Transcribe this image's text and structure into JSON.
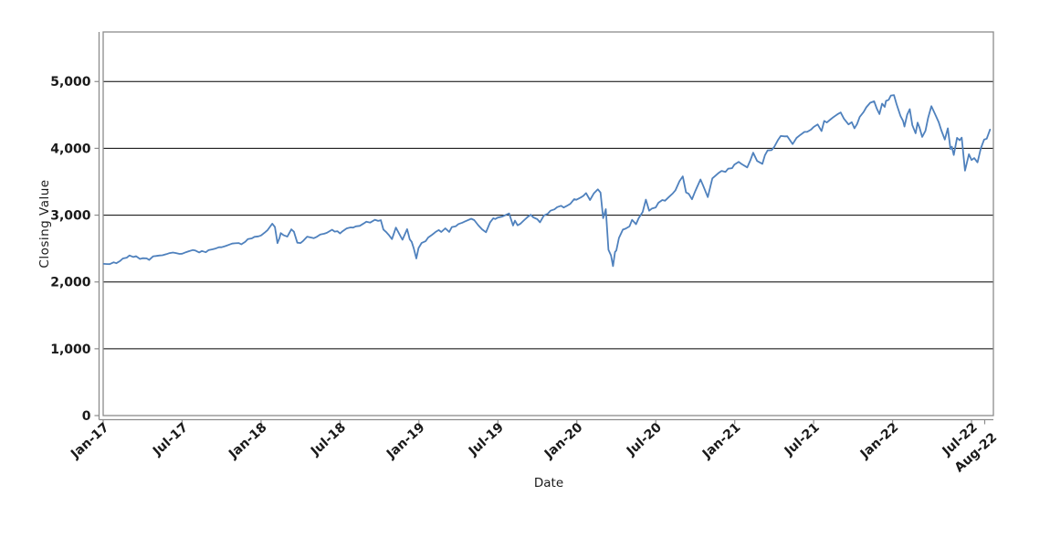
{
  "figure": {
    "background": "#ffffff",
    "frame_color": "#8c8c8c",
    "grid_color": "#000000",
    "text_color": "#1a1a1a"
  },
  "chart_data": {
    "type": "line",
    "title": "",
    "xlabel": "Date",
    "ylabel": "Closing Value",
    "legend": "none",
    "grid": "horizontal",
    "line_color": "#4f81bd",
    "xlim": [
      0,
      67.66
    ],
    "ylim": [
      0,
      5742
    ],
    "x_unit": "months-since-Jan-2017",
    "x_ticks": [
      {
        "label": "Jan-17",
        "t": 0
      },
      {
        "label": "Jul-17",
        "t": 6
      },
      {
        "label": "Jan-18",
        "t": 12
      },
      {
        "label": "Jul-18",
        "t": 18
      },
      {
        "label": "Jan-19",
        "t": 24
      },
      {
        "label": "Jul-19",
        "t": 30
      },
      {
        "label": "Jan-20",
        "t": 36
      },
      {
        "label": "Jul-20",
        "t": 42
      },
      {
        "label": "Jan-21",
        "t": 48
      },
      {
        "label": "Jul-21",
        "t": 54
      },
      {
        "label": "Jan-22",
        "t": 60
      },
      {
        "label": "Jul-22",
        "t": 66
      },
      {
        "label": "Aug-22",
        "t": 67,
        "dx": 7,
        "dy": 11
      }
    ],
    "y_ticks": [
      {
        "label": "0",
        "v": 0
      },
      {
        "label": "1,000",
        "v": 1000
      },
      {
        "label": "2,000",
        "v": 2000
      },
      {
        "label": "3,000",
        "v": 3000
      },
      {
        "label": "4,000",
        "v": 4000
      },
      {
        "label": "5,000",
        "v": 5000
      }
    ],
    "series": [
      {
        "name": "Closing Value",
        "points": [
          [
            0.05,
            2271
          ],
          [
            0.3,
            2268
          ],
          [
            0.5,
            2267
          ],
          [
            0.8,
            2294
          ],
          [
            1.0,
            2280
          ],
          [
            1.3,
            2316
          ],
          [
            1.5,
            2351
          ],
          [
            1.8,
            2364
          ],
          [
            2.0,
            2396
          ],
          [
            2.3,
            2373
          ],
          [
            2.5,
            2385
          ],
          [
            2.8,
            2344
          ],
          [
            3.0,
            2356
          ],
          [
            3.3,
            2353
          ],
          [
            3.5,
            2329
          ],
          [
            3.8,
            2384
          ],
          [
            4.0,
            2388
          ],
          [
            4.3,
            2397
          ],
          [
            4.5,
            2400
          ],
          [
            4.8,
            2416
          ],
          [
            5.0,
            2430
          ],
          [
            5.3,
            2440
          ],
          [
            5.5,
            2433
          ],
          [
            5.8,
            2420
          ],
          [
            6.0,
            2423
          ],
          [
            6.3,
            2446
          ],
          [
            6.5,
            2460
          ],
          [
            6.8,
            2477
          ],
          [
            7.0,
            2470
          ],
          [
            7.3,
            2442
          ],
          [
            7.5,
            2464
          ],
          [
            7.8,
            2444
          ],
          [
            8.0,
            2476
          ],
          [
            8.3,
            2488
          ],
          [
            8.5,
            2498
          ],
          [
            8.8,
            2519
          ],
          [
            9.0,
            2520
          ],
          [
            9.3,
            2537
          ],
          [
            9.5,
            2553
          ],
          [
            9.8,
            2575
          ],
          [
            10.0,
            2579
          ],
          [
            10.3,
            2582
          ],
          [
            10.5,
            2564
          ],
          [
            10.8,
            2602
          ],
          [
            11.0,
            2642
          ],
          [
            11.3,
            2652
          ],
          [
            11.5,
            2675
          ],
          [
            11.8,
            2683
          ],
          [
            12.0,
            2696
          ],
          [
            12.3,
            2743
          ],
          [
            12.5,
            2776
          ],
          [
            12.85,
            2873
          ],
          [
            13.05,
            2822
          ],
          [
            13.25,
            2581
          ],
          [
            13.4,
            2656
          ],
          [
            13.5,
            2732
          ],
          [
            13.7,
            2701
          ],
          [
            14.0,
            2678
          ],
          [
            14.3,
            2787
          ],
          [
            14.5,
            2752
          ],
          [
            14.75,
            2588
          ],
          [
            15.0,
            2582
          ],
          [
            15.2,
            2614
          ],
          [
            15.5,
            2678
          ],
          [
            15.7,
            2670
          ],
          [
            16.0,
            2655
          ],
          [
            16.2,
            2672
          ],
          [
            16.5,
            2711
          ],
          [
            16.8,
            2722
          ],
          [
            17.0,
            2735
          ],
          [
            17.4,
            2782
          ],
          [
            17.6,
            2754
          ],
          [
            17.8,
            2760
          ],
          [
            18.0,
            2726
          ],
          [
            18.2,
            2760
          ],
          [
            18.5,
            2801
          ],
          [
            18.8,
            2816
          ],
          [
            19.0,
            2813
          ],
          [
            19.2,
            2833
          ],
          [
            19.5,
            2840
          ],
          [
            19.8,
            2875
          ],
          [
            20.0,
            2902
          ],
          [
            20.3,
            2889
          ],
          [
            20.65,
            2931
          ],
          [
            20.9,
            2914
          ],
          [
            21.1,
            2925
          ],
          [
            21.3,
            2785
          ],
          [
            21.5,
            2750
          ],
          [
            21.7,
            2705
          ],
          [
            21.95,
            2641
          ],
          [
            22.25,
            2814
          ],
          [
            22.5,
            2722
          ],
          [
            22.75,
            2632
          ],
          [
            23.1,
            2790
          ],
          [
            23.3,
            2637
          ],
          [
            23.45,
            2600
          ],
          [
            23.6,
            2506
          ],
          [
            23.8,
            2351
          ],
          [
            23.97,
            2507
          ],
          [
            24.2,
            2582
          ],
          [
            24.5,
            2610
          ],
          [
            24.7,
            2665
          ],
          [
            25.0,
            2707
          ],
          [
            25.3,
            2754
          ],
          [
            25.5,
            2776
          ],
          [
            25.7,
            2748
          ],
          [
            26.0,
            2803
          ],
          [
            26.3,
            2749
          ],
          [
            26.5,
            2822
          ],
          [
            26.8,
            2834
          ],
          [
            27.0,
            2867
          ],
          [
            27.3,
            2888
          ],
          [
            27.5,
            2906
          ],
          [
            27.97,
            2946
          ],
          [
            28.2,
            2926
          ],
          [
            28.5,
            2851
          ],
          [
            28.8,
            2788
          ],
          [
            29.1,
            2744
          ],
          [
            29.4,
            2890
          ],
          [
            29.65,
            2954
          ],
          [
            29.8,
            2942
          ],
          [
            30.0,
            2964
          ],
          [
            30.3,
            2976
          ],
          [
            30.85,
            3026
          ],
          [
            31.15,
            2845
          ],
          [
            31.3,
            2918
          ],
          [
            31.5,
            2848
          ],
          [
            31.7,
            2869
          ],
          [
            32.0,
            2926
          ],
          [
            32.3,
            2979
          ],
          [
            32.5,
            3007
          ],
          [
            32.7,
            2966
          ],
          [
            33.0,
            2940
          ],
          [
            33.2,
            2893
          ],
          [
            33.5,
            2996
          ],
          [
            33.8,
            3023
          ],
          [
            34.0,
            3067
          ],
          [
            34.3,
            3087
          ],
          [
            34.5,
            3120
          ],
          [
            34.8,
            3141
          ],
          [
            35.0,
            3114
          ],
          [
            35.3,
            3146
          ],
          [
            35.5,
            3169
          ],
          [
            35.8,
            3240
          ],
          [
            35.97,
            3231
          ],
          [
            36.3,
            3265
          ],
          [
            36.5,
            3289
          ],
          [
            36.7,
            3330
          ],
          [
            37.0,
            3226
          ],
          [
            37.3,
            3328
          ],
          [
            37.6,
            3386
          ],
          [
            37.8,
            3338
          ],
          [
            38.0,
            2954
          ],
          [
            38.2,
            3090
          ],
          [
            38.4,
            2481
          ],
          [
            38.6,
            2398
          ],
          [
            38.75,
            2237
          ],
          [
            38.9,
            2448
          ],
          [
            39.0,
            2471
          ],
          [
            39.2,
            2659
          ],
          [
            39.5,
            2783
          ],
          [
            39.7,
            2797
          ],
          [
            40.0,
            2831
          ],
          [
            40.2,
            2930
          ],
          [
            40.5,
            2864
          ],
          [
            40.7,
            2955
          ],
          [
            41.0,
            3044
          ],
          [
            41.25,
            3232
          ],
          [
            41.5,
            3066
          ],
          [
            41.7,
            3098
          ],
          [
            42.0,
            3116
          ],
          [
            42.2,
            3185
          ],
          [
            42.5,
            3226
          ],
          [
            42.7,
            3216
          ],
          [
            43.0,
            3271
          ],
          [
            43.3,
            3327
          ],
          [
            43.5,
            3373
          ],
          [
            43.8,
            3508
          ],
          [
            44.05,
            3581
          ],
          [
            44.3,
            3340
          ],
          [
            44.5,
            3319
          ],
          [
            44.75,
            3237
          ],
          [
            45.0,
            3361
          ],
          [
            45.4,
            3534
          ],
          [
            45.6,
            3443
          ],
          [
            45.95,
            3270
          ],
          [
            46.3,
            3550
          ],
          [
            46.5,
            3585
          ],
          [
            46.8,
            3635
          ],
          [
            47.0,
            3662
          ],
          [
            47.3,
            3647
          ],
          [
            47.5,
            3695
          ],
          [
            47.8,
            3703
          ],
          [
            47.97,
            3756
          ],
          [
            48.3,
            3798
          ],
          [
            48.5,
            3768
          ],
          [
            48.95,
            3714
          ],
          [
            49.2,
            3826
          ],
          [
            49.4,
            3935
          ],
          [
            49.7,
            3811
          ],
          [
            50.1,
            3768
          ],
          [
            50.3,
            3898
          ],
          [
            50.5,
            3969
          ],
          [
            50.8,
            3973
          ],
          [
            51.0,
            4020
          ],
          [
            51.3,
            4128
          ],
          [
            51.5,
            4185
          ],
          [
            51.8,
            4180
          ],
          [
            52.0,
            4181
          ],
          [
            52.4,
            4063
          ],
          [
            52.7,
            4156
          ],
          [
            53.0,
            4202
          ],
          [
            53.3,
            4247
          ],
          [
            53.5,
            4246
          ],
          [
            53.8,
            4281
          ],
          [
            54.0,
            4320
          ],
          [
            54.3,
            4358
          ],
          [
            54.6,
            4258
          ],
          [
            54.8,
            4411
          ],
          [
            55.0,
            4387
          ],
          [
            55.3,
            4437
          ],
          [
            55.5,
            4468
          ],
          [
            55.8,
            4509
          ],
          [
            56.05,
            4537
          ],
          [
            56.3,
            4444
          ],
          [
            56.65,
            4358
          ],
          [
            56.9,
            4391
          ],
          [
            57.1,
            4300
          ],
          [
            57.3,
            4364
          ],
          [
            57.5,
            4471
          ],
          [
            57.8,
            4544
          ],
          [
            58.0,
            4614
          ],
          [
            58.3,
            4683
          ],
          [
            58.6,
            4705
          ],
          [
            58.8,
            4595
          ],
          [
            59.0,
            4513
          ],
          [
            59.2,
            4669
          ],
          [
            59.4,
            4621
          ],
          [
            59.5,
            4710
          ],
          [
            59.7,
            4726
          ],
          [
            59.87,
            4791
          ],
          [
            60.1,
            4797
          ],
          [
            60.3,
            4663
          ],
          [
            60.6,
            4483
          ],
          [
            60.8,
            4410
          ],
          [
            60.9,
            4326
          ],
          [
            61.1,
            4501
          ],
          [
            61.3,
            4587
          ],
          [
            61.5,
            4349
          ],
          [
            61.75,
            4226
          ],
          [
            61.9,
            4385
          ],
          [
            62.05,
            4306
          ],
          [
            62.25,
            4171
          ],
          [
            62.5,
            4263
          ],
          [
            62.7,
            4456
          ],
          [
            62.95,
            4631
          ],
          [
            63.2,
            4525
          ],
          [
            63.5,
            4393
          ],
          [
            63.7,
            4272
          ],
          [
            63.97,
            4132
          ],
          [
            64.2,
            4300
          ],
          [
            64.4,
            3991
          ],
          [
            64.5,
            4024
          ],
          [
            64.65,
            3901
          ],
          [
            64.9,
            4158
          ],
          [
            65.1,
            4121
          ],
          [
            65.25,
            4160
          ],
          [
            65.5,
            3667
          ],
          [
            65.8,
            3912
          ],
          [
            66.0,
            3825
          ],
          [
            66.2,
            3854
          ],
          [
            66.45,
            3790
          ],
          [
            66.7,
            3998
          ],
          [
            66.95,
            4130
          ],
          [
            67.15,
            4145
          ],
          [
            67.4,
            4280
          ]
        ]
      }
    ]
  }
}
